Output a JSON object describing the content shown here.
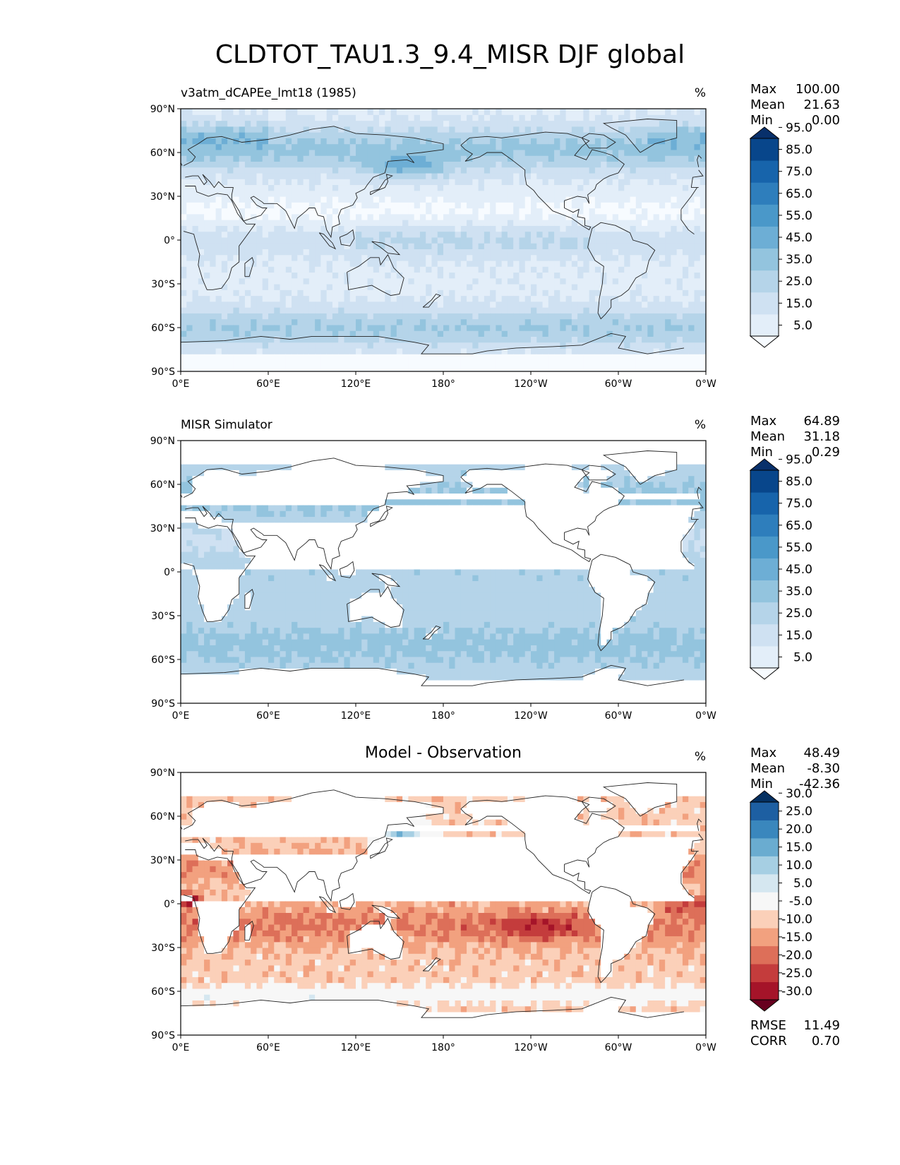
{
  "figure": {
    "title": "CLDTOT_TAU1.3_9.4_MISR DJF global"
  },
  "colors": {
    "blues": [
      "#f7fbff",
      "#e3eef9",
      "#cfe1f2",
      "#b5d4e9",
      "#93c4de",
      "#6daed5",
      "#4a98c9",
      "#2e7ebc",
      "#1764ab",
      "#08468b",
      "#08306b"
    ],
    "diverging": [
      "#67001f",
      "#a51429",
      "#c43c3c",
      "#dd6f59",
      "#f2a17f",
      "#fbd0b9",
      "#f7f7f7",
      "#d5e7f0",
      "#a6cfe3",
      "#6aacd0",
      "#3a87bd",
      "#1d5fa2",
      "#053061"
    ]
  },
  "panels": [
    {
      "left_title": "v3atm_dCAPEe_lmt18 (1985)",
      "center_title": "",
      "units": "%",
      "stats": {
        "max_label": "Max",
        "max": "100.00",
        "mean_label": "Mean",
        "mean": "21.63",
        "min_label": "Min",
        "min": "0.00"
      },
      "colorbar": {
        "ticks": [
          "5.0",
          "15.0",
          "25.0",
          "35.0",
          "45.0",
          "55.0",
          "65.0",
          "75.0",
          "85.0",
          "95.0"
        ]
      }
    },
    {
      "left_title": "MISR Simulator",
      "center_title": "",
      "units": "%",
      "stats": {
        "max_label": "Max",
        "max": "64.89",
        "mean_label": "Mean",
        "mean": "31.18",
        "min_label": "Min",
        "min": "0.29"
      },
      "colorbar": {
        "ticks": [
          "5.0",
          "15.0",
          "25.0",
          "35.0",
          "45.0",
          "55.0",
          "65.0",
          "75.0",
          "85.0",
          "95.0"
        ]
      }
    },
    {
      "left_title": "",
      "center_title": "Model - Observation",
      "units": "%",
      "stats": {
        "max_label": "Max",
        "max": "48.49",
        "mean_label": "Mean",
        "mean": "-8.30",
        "min_label": "Min",
        "min": "-42.36"
      },
      "colorbar": {
        "ticks": [
          "-30.0",
          "-25.0",
          "-20.0",
          "-15.0",
          "-10.0",
          "-5.0",
          "5.0",
          "10.0",
          "15.0",
          "20.0",
          "25.0",
          "30.0"
        ]
      },
      "rmse_label": "RMSE",
      "rmse": "11.49",
      "corr_label": "CORR",
      "corr": "0.70"
    }
  ],
  "axes": {
    "x_ticks": [
      "0°E",
      "60°E",
      "120°E",
      "180°",
      "120°W",
      "60°W",
      "0°W"
    ],
    "y_ticks": [
      "90°N",
      "60°N",
      "30°N",
      "0°",
      "30°S",
      "60°S",
      "90°S"
    ]
  },
  "chart_data": [
    {
      "type": "heatmap",
      "title": "v3atm_dCAPEe_lmt18 (1985)",
      "units": "%",
      "x_range": [
        0,
        360
      ],
      "y_range": [
        -90,
        90
      ],
      "levels": [
        0,
        10,
        20,
        30,
        40,
        50,
        60,
        70,
        80,
        90,
        100
      ],
      "max": 100.0,
      "mean": 21.63,
      "min": 0.0
    },
    {
      "type": "heatmap",
      "title": "MISR Simulator",
      "units": "%",
      "x_range": [
        0,
        360
      ],
      "y_range": [
        -90,
        90
      ],
      "levels": [
        0,
        10,
        20,
        30,
        40,
        50,
        60,
        70,
        80,
        90,
        100
      ],
      "max": 64.89,
      "mean": 31.18,
      "min": 0.29
    },
    {
      "type": "heatmap",
      "title": "Model - Observation",
      "units": "%",
      "x_range": [
        0,
        360
      ],
      "y_range": [
        -90,
        90
      ],
      "levels": [
        -35,
        -30,
        -25,
        -20,
        -15,
        -10,
        -5,
        5,
        10,
        15,
        20,
        25,
        30,
        35
      ],
      "max": 48.49,
      "mean": -8.3,
      "min": -42.36,
      "rmse": 11.49,
      "corr": 0.7
    }
  ]
}
